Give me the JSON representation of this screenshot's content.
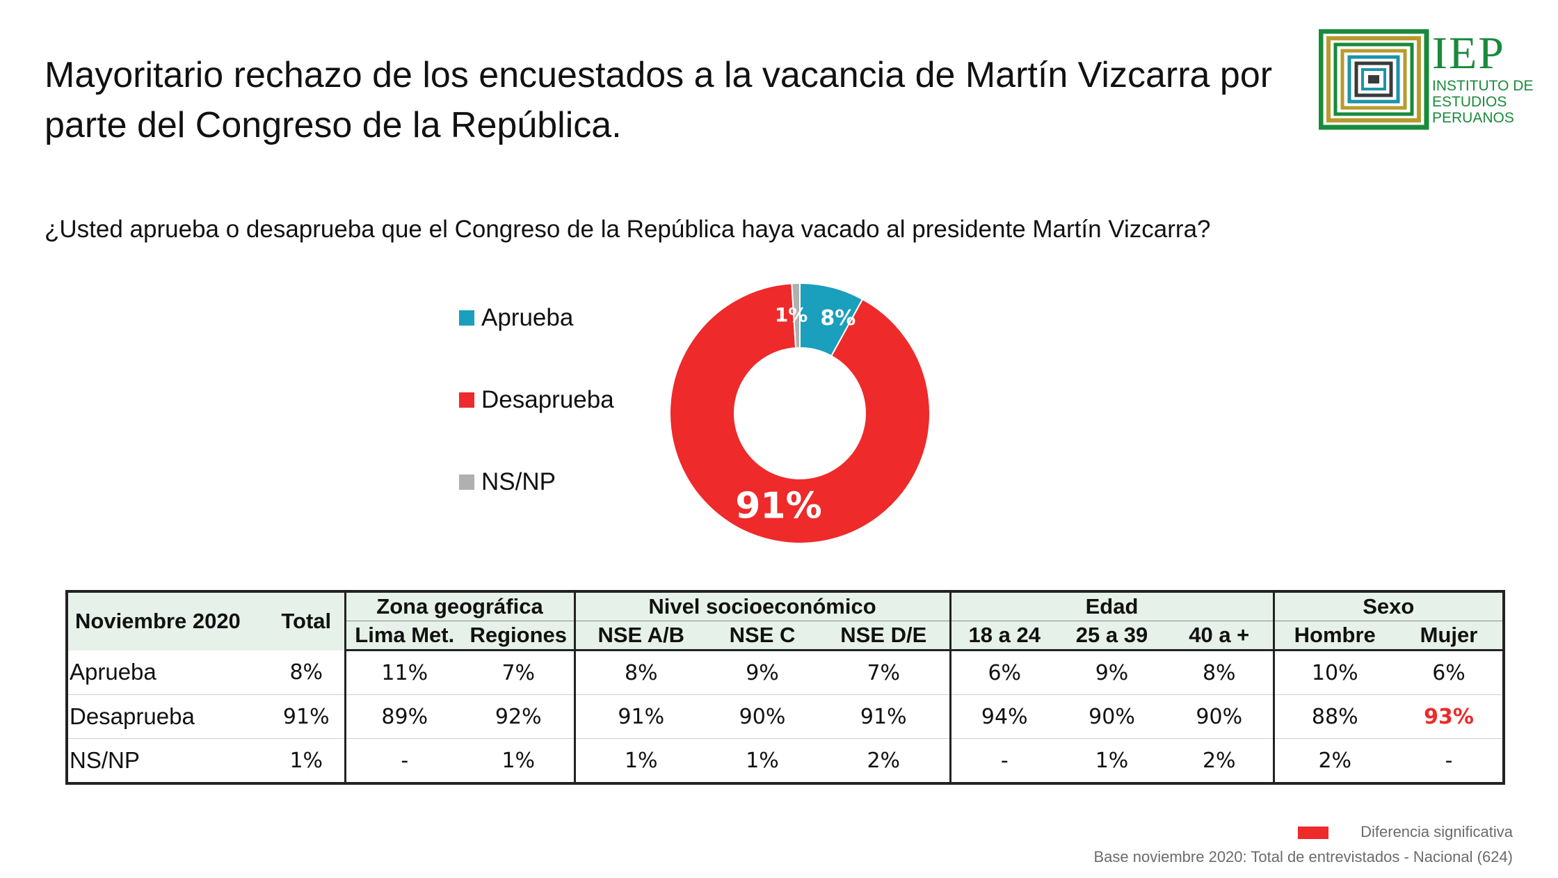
{
  "title": "Mayoritario rechazo de los encuestados a la vacancia de Martín Vizcarra por parte del Congreso de la República.",
  "logo": {
    "acronym": "IEP",
    "name_lines": [
      "INSTITUTO DE",
      "ESTUDIOS",
      "PERUANOS"
    ],
    "colors": [
      "#1a8a3c",
      "#b99a2d",
      "#1c93a8",
      "#3b3b3b"
    ]
  },
  "question": "¿Usted aprueba o desaprueba que el Congreso de la República haya vacado al presidente Martín Vizcarra?",
  "chart_data": {
    "type": "pie",
    "subtype": "donut",
    "title": "¿Usted aprueba o desaprueba que el Congreso de la República haya vacado al presidente Martín Vizcarra?",
    "categories": [
      "Aprueba",
      "Desaprueba",
      "NS/NP"
    ],
    "values": [
      8,
      91,
      1
    ],
    "labels": [
      "8%",
      "91%",
      "1%"
    ],
    "colors": [
      "#1a9fbd",
      "#ee2a2a",
      "#b0b0b0"
    ],
    "legend_position": "left"
  },
  "table": {
    "corner": "Noviembre 2020",
    "total_label": "Total",
    "groups": [
      {
        "name": "Zona geográfica",
        "cols": [
          "Lima Met.",
          "Regiones"
        ]
      },
      {
        "name": "Nivel socioeconómico",
        "cols": [
          "NSE A/B",
          "NSE C",
          "NSE D/E"
        ]
      },
      {
        "name": "Edad",
        "cols": [
          "18 a 24",
          "25 a 39",
          "40 a +"
        ]
      },
      {
        "name": "Sexo",
        "cols": [
          "Hombre",
          "Mujer"
        ]
      }
    ],
    "rows": [
      {
        "label": "Aprueba",
        "values": [
          "8%",
          "11%",
          "7%",
          "8%",
          "9%",
          "7%",
          "6%",
          "9%",
          "8%",
          "10%",
          "6%"
        ]
      },
      {
        "label": "Desaprueba",
        "values": [
          "91%",
          "89%",
          "92%",
          "91%",
          "90%",
          "91%",
          "94%",
          "90%",
          "90%",
          "88%",
          "93%"
        ]
      },
      {
        "label": "NS/NP",
        "values": [
          "1%",
          "-",
          "1%",
          "1%",
          "1%",
          "2%",
          "-",
          "1%",
          "2%",
          "2%",
          "-"
        ]
      }
    ]
  },
  "significance_note": {
    "label": "Diferencia significativa",
    "color": "#ee2a2a"
  },
  "base_note": "Base noviembre 2020: Total de entrevistados - Nacional (624)"
}
